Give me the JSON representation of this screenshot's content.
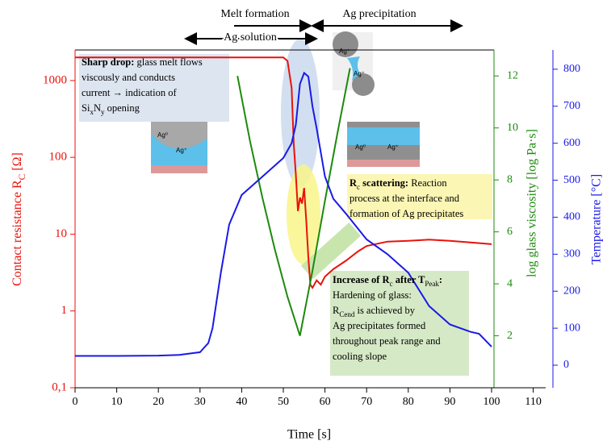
{
  "chart_data": {
    "type": "line",
    "xlabel": "Time [s]",
    "ylabel": [
      "Contact resistance R",
      {
        "sub": "C"
      },
      " [Ω]"
    ],
    "y2label": "log glass viscosity  [log Pa·s]",
    "y3label": "Temperature [°C]",
    "xlim": [
      0,
      113
    ],
    "xticks": [
      0,
      10,
      20,
      30,
      40,
      50,
      60,
      70,
      80,
      90,
      100,
      110
    ],
    "yscale": "log",
    "ylim": [
      0.1,
      2500
    ],
    "yticks": [
      {
        "value": 0.1,
        "label": "0,1"
      },
      1,
      10,
      100,
      1000
    ],
    "y2lim": [
      0,
      13
    ],
    "y2ticks": [
      2,
      4,
      6,
      8,
      10,
      12
    ],
    "y3lim": [
      -61,
      852
    ],
    "y3ticks": [
      0,
      100,
      200,
      300,
      400,
      500,
      600,
      700,
      800
    ],
    "series": [
      {
        "color": "#e8120c",
        "axis": "y",
        "x": [
          0,
          10,
          20,
          30,
          40,
          45,
          50,
          51,
          52,
          52.5,
          53,
          53.5,
          54,
          54.5,
          55,
          55.5,
          56,
          56.5,
          57,
          58,
          59,
          60,
          62,
          65,
          68,
          70,
          75,
          80,
          85,
          90,
          95,
          100
        ],
        "values": [
          2000,
          2000,
          2000,
          2000,
          2000,
          2000,
          2000,
          1800,
          800,
          150,
          60,
          20,
          30,
          25,
          40,
          15,
          5,
          2.2,
          2,
          2.5,
          2.2,
          2.8,
          3.5,
          4.5,
          6,
          7,
          8,
          8.2,
          8.5,
          8.2,
          7.8,
          7.4
        ]
      },
      {
        "color": "#1c8a0c",
        "axis": "y2",
        "x": [
          39,
          42,
          45,
          48,
          51,
          54,
          57,
          60,
          63,
          66
        ],
        "values": [
          12,
          9.5,
          7.3,
          5.3,
          3.5,
          2,
          4.5,
          7.2,
          9.8,
          12.3
        ]
      },
      {
        "color": "#1a1ae6",
        "axis": "y3",
        "x": [
          0,
          10,
          20,
          25,
          30,
          32,
          33,
          35,
          37,
          40,
          45,
          50,
          52,
          53,
          54,
          55,
          56,
          57,
          58,
          60,
          62,
          65,
          70,
          75,
          80,
          85,
          90,
          95,
          97,
          100
        ],
        "values": [
          25,
          25,
          26,
          28,
          35,
          60,
          100,
          250,
          380,
          460,
          510,
          560,
          600,
          650,
          760,
          790,
          780,
          700,
          640,
          510,
          450,
          410,
          340,
          300,
          250,
          160,
          110,
          90,
          85,
          50
        ]
      }
    ],
    "annotations": {
      "melt_formation": "Melt formation",
      "ag_solution": "Ag solution",
      "ag_precipitation": "Ag precipitation",
      "sharp_drop": [
        [
          {
            "bold": "Sharp drop:"
          },
          " glass melt flows"
        ],
        [
          "viscously and conducts"
        ],
        [
          "current → indication of"
        ],
        [
          "Si",
          {
            "sub": "x"
          },
          "N",
          {
            "sub": "y"
          },
          " opening"
        ]
      ],
      "scattering": [
        [
          {
            "bold": "R"
          },
          {
            "sub": "c"
          },
          {
            "bold": " scattering:"
          },
          " Reaction"
        ],
        [
          "process at the interface and"
        ],
        [
          "formation of Ag precipitates"
        ]
      ],
      "increase": [
        [
          {
            "bold": "Increase of R"
          },
          {
            "sub": "c"
          },
          {
            "bold": " after T"
          },
          {
            "sub": "Peak"
          },
          {
            "bold": ":"
          }
        ],
        [
          "Hardening of glass:"
        ],
        [
          "R",
          {
            "sub": "Cend"
          },
          " is achieved by"
        ],
        [
          "Ag precipitates formed"
        ],
        [
          "throughout peak range and"
        ],
        [
          "cooling slope"
        ]
      ],
      "inset_labels": [
        "Ag⁺",
        "Ag⁺",
        "Ag⁰",
        "Ag⁺",
        "Ag⁰",
        "Ag⁺"
      ]
    }
  }
}
